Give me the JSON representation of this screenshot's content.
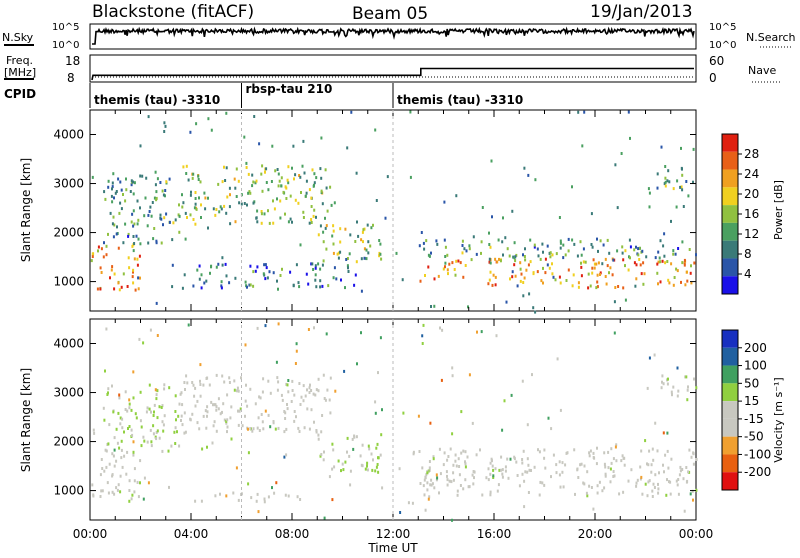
{
  "header": {
    "station": "Blackstone (fitACF)",
    "beam": "Beam 05",
    "date": "19/Jan/2013"
  },
  "sky_panel": {
    "left_label": "N.Sky",
    "left_ticks": [
      "10^5",
      "10^0"
    ],
    "right_label": "N.Search",
    "right_ticks": [
      "10^5",
      "10^0"
    ]
  },
  "freq_panel": {
    "left_label_line1": "Freq.",
    "left_label_line2": "[MHz]",
    "left_ticks": [
      "18",
      "8"
    ],
    "right_label": "Nave",
    "right_ticks": [
      "60",
      "0"
    ],
    "freq_step_hour": 13.1,
    "freq_before": 10.5,
    "freq_after": 13.0
  },
  "cpid": {
    "label": "CPID",
    "segments": [
      {
        "name": "themis (tau) -3310",
        "start": 0,
        "end": 6.0
      },
      {
        "name": "rbsp-tau 210",
        "start": 6.0,
        "end": 12.0
      },
      {
        "name": "themis (tau) -3310",
        "start": 12.0,
        "end": 24
      }
    ]
  },
  "x_axis": {
    "label": "Time UT",
    "ticks": [
      "00:00",
      "04:00",
      "08:00",
      "12:00",
      "16:00",
      "20:00",
      "00:00"
    ]
  },
  "chart_data": [
    {
      "type": "heatmap",
      "title": "",
      "xlabel": "Time UT",
      "ylabel": "Slant Range [km]",
      "yticks": [
        "1000",
        "2000",
        "3000",
        "4000"
      ],
      "xlim": [
        0,
        24
      ],
      "ylim": [
        400,
        4500
      ],
      "colorbar": {
        "label": "Power [dB]",
        "ticks": [
          "28",
          "24",
          "20",
          "16",
          "12",
          "8",
          "4"
        ],
        "range": [
          0,
          30
        ],
        "colors": [
          "#1a10e8",
          "#2a55a8",
          "#3a7a78",
          "#4aa060",
          "#90c040",
          "#f0d020",
          "#f0a020",
          "#e86018",
          "#e02010"
        ]
      },
      "scatter_regions": [
        {
          "t0": 0.0,
          "t1": 2.0,
          "r0": 850,
          "r1": 1800,
          "power": 22
        },
        {
          "t0": 0.5,
          "t1": 3.5,
          "r0": 1800,
          "r1": 3200,
          "power": 10
        },
        {
          "t0": 3.5,
          "t1": 9.5,
          "r0": 2200,
          "r1": 3400,
          "power": 14
        },
        {
          "t0": 4.0,
          "t1": 10.5,
          "r0": 900,
          "r1": 1400,
          "power": 7
        },
        {
          "t0": 9.0,
          "t1": 11.5,
          "r0": 1400,
          "r1": 2200,
          "power": 14
        },
        {
          "t0": 13.0,
          "t1": 24.0,
          "r0": 900,
          "r1": 1500,
          "power": 22
        },
        {
          "t0": 13.0,
          "t1": 24.0,
          "r0": 1500,
          "r1": 1900,
          "power": 10
        },
        {
          "t0": 22.5,
          "t1": 24.0,
          "r0": 2900,
          "r1": 3400,
          "power": 12
        }
      ]
    },
    {
      "type": "heatmap",
      "title": "",
      "xlabel": "Time UT",
      "ylabel": "Slant Range [km]",
      "yticks": [
        "1000",
        "2000",
        "3000",
        "4000"
      ],
      "xlim": [
        0,
        24
      ],
      "ylim": [
        400,
        4500
      ],
      "colorbar": {
        "label": "Velocity [m s⁻¹]",
        "ticks": [
          "200",
          "100",
          "50",
          "15",
          "-15",
          "-50",
          "-100",
          "-200"
        ],
        "range": [
          -250,
          250
        ],
        "colors": [
          "#e01010",
          "#e86010",
          "#f0a030",
          "#c8c8c0",
          "#c8c8c0",
          "#90d040",
          "#40a060",
          "#2060a0",
          "#1830c0"
        ]
      },
      "scatter_regions": [
        {
          "t0": 0.0,
          "t1": 2.0,
          "r0": 850,
          "r1": 1800,
          "velocity": 0
        },
        {
          "t0": 0.5,
          "t1": 3.5,
          "r0": 1800,
          "r1": 3200,
          "velocity": 30
        },
        {
          "t0": 3.5,
          "t1": 9.5,
          "r0": 2200,
          "r1": 3400,
          "velocity": 0
        },
        {
          "t0": 4.0,
          "t1": 8.5,
          "r0": 800,
          "r1": 1000,
          "velocity": -60
        },
        {
          "t0": 9.0,
          "t1": 11.5,
          "r0": 1400,
          "r1": 2200,
          "velocity": 20
        },
        {
          "t0": 13.0,
          "t1": 24.0,
          "r0": 900,
          "r1": 1900,
          "velocity": 0
        },
        {
          "t0": 22.5,
          "t1": 24.0,
          "r0": 2900,
          "r1": 3400,
          "velocity": 0
        }
      ]
    }
  ]
}
